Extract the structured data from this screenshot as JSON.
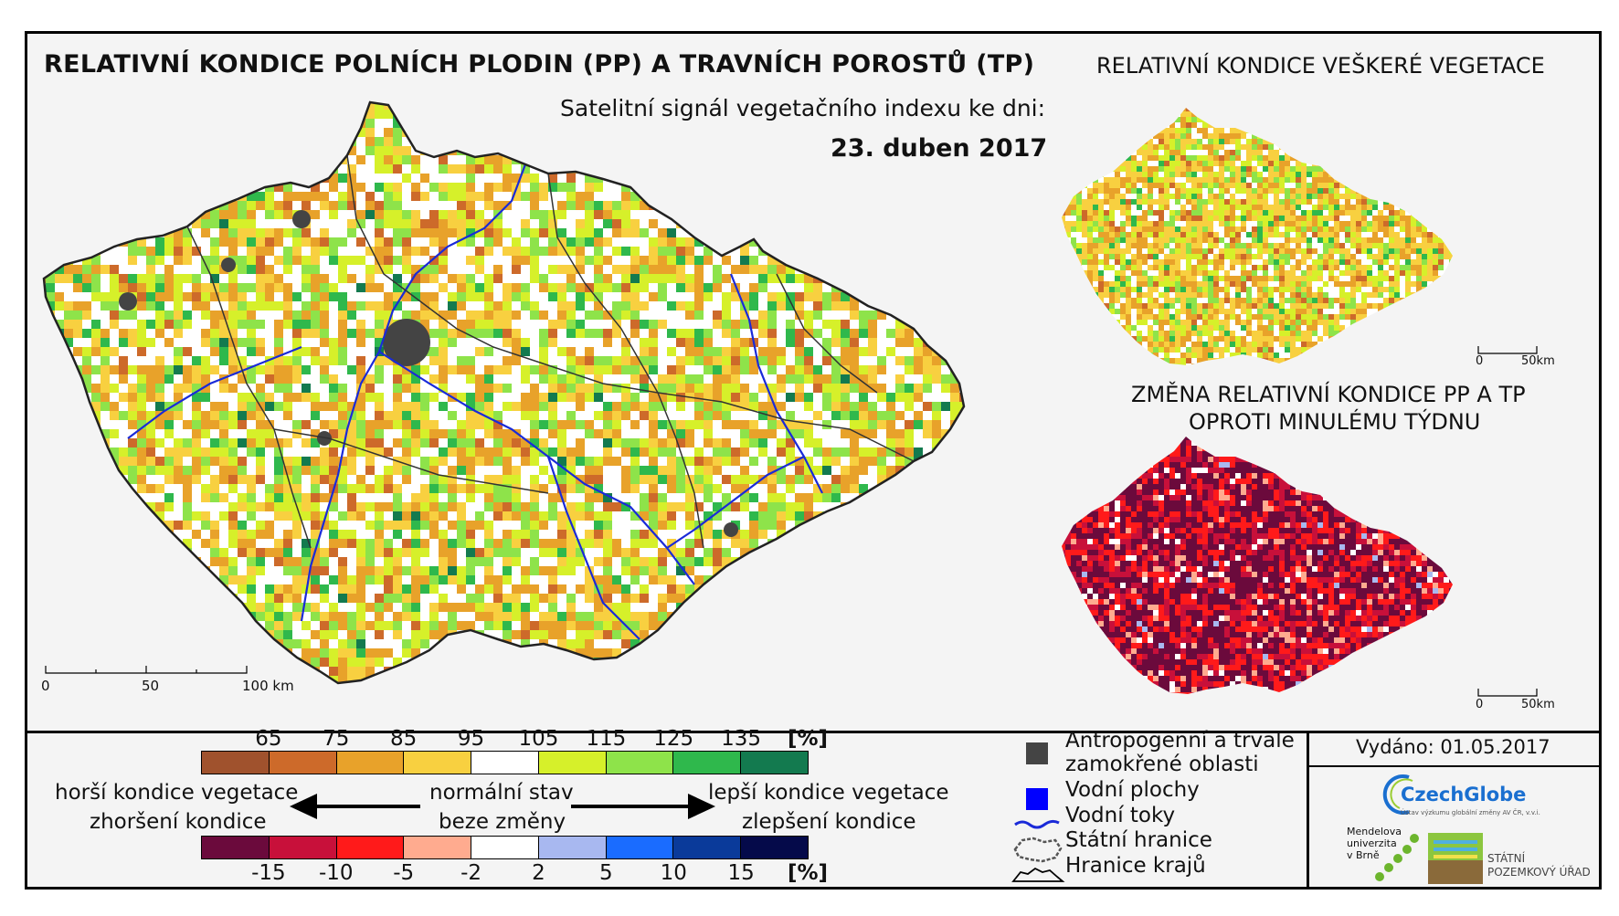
{
  "titles": {
    "main": "RELATIVNÍ KONDICE POLNÍCH PLODIN (PP) A TRAVNÍCH POROSTŮ (TP)",
    "subtitle": "Satelitní signál vegetačního indexu ke dni:",
    "date": "23. duben 2017",
    "vegetation": "RELATIVNÍ KONDICE VEŠKERÉ VEGETACE",
    "change_line1": "ZMĚNA RELATIVNÍ KONDICE PP A TP",
    "change_line2": "OPROTI MINULÉMU TÝDNU"
  },
  "scales": {
    "main": {
      "zero": "0",
      "mid": "50",
      "end": "100 km"
    },
    "vegetation": {
      "zero": "0",
      "end": "50km"
    },
    "change": {
      "zero": "0",
      "end": "50km"
    }
  },
  "legend": {
    "condition_labels": [
      "65",
      "75",
      "85",
      "95",
      "105",
      "115",
      "125",
      "135"
    ],
    "condition_unit": "[%]",
    "condition_colors": [
      "#a0522d",
      "#cd6a2a",
      "#e8a22a",
      "#f8d040",
      "#ffffff",
      "#d6f02a",
      "#8ee34a",
      "#2fb84c",
      "#137a4f"
    ],
    "change_labels": [
      "-15",
      "-10",
      "-5",
      "-2",
      "2",
      "5",
      "10",
      "15"
    ],
    "change_unit": "[%]",
    "change_colors": [
      "#6b0a3c",
      "#c8103a",
      "#ff1a1a",
      "#ffab8f",
      "#ffffff",
      "#a8b8f0",
      "#1a6cff",
      "#0a3a9a",
      "#050a4a"
    ],
    "worse_1": "horší kondice vegetace",
    "worse_2": "zhoršení kondice",
    "normal_1": "normální stav",
    "normal_2": "beze změny",
    "better_1": "lepší kondice vegetace",
    "better_2": "zlepšení kondice"
  },
  "symbols": {
    "anthropogenic_1": "Antropogenní a trvale",
    "anthropogenic_2": "zamokřené oblasti",
    "water_bodies": "Vodní plochy",
    "rivers": "Vodní toky",
    "state_border": "Státní hranice",
    "region_border": "Hranice krajů"
  },
  "issued": "Vydáno: 01.05.2017",
  "logos": {
    "czechglobe": "CzechGlobe",
    "czechglobe_sub": "Ústav výzkumu globální změny AV ČR, v.v.i.",
    "mendel_1": "Mendelova",
    "mendel_2": "univerzita",
    "mendel_3": "v Brně",
    "spu_1": "STÁTNÍ",
    "spu_2": "POZEMKOVÝ ÚŘAD"
  },
  "colors": {
    "frame": "#000000",
    "background": "#f4f4f4",
    "river": "#1a2ad8",
    "anthropogenic": "#444444",
    "water": "#0000ff"
  }
}
